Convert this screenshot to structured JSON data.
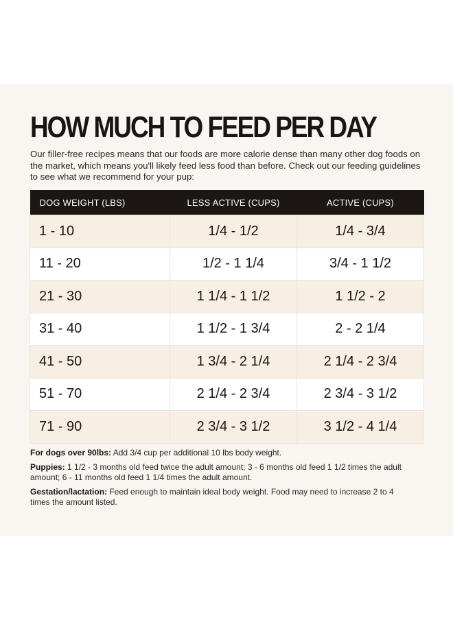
{
  "title": "HOW MUCH TO FEED PER DAY",
  "intro": "Our filler-free recipes means that our foods are more calorie dense than many other dog foods on the market, which means you'll likely feed less food than before. Check out our feeding guidelines to see what we recommend for your pup:",
  "table": {
    "headers": [
      "DOG WEIGHT (LBS)",
      "LESS ACTIVE (CUPS)",
      "ACTIVE (CUPS)"
    ],
    "rows": [
      [
        "1 - 10",
        "1/4 - 1/2",
        "1/4 - 3/4"
      ],
      [
        "11 - 20",
        "1/2 - 1 1/4",
        "3/4 - 1 1/2"
      ],
      [
        "21 - 30",
        "1 1/4 - 1 1/2",
        "1 1/2 - 2"
      ],
      [
        "31 - 40",
        "1 1/2 - 1 3/4",
        "2 - 2 1/4"
      ],
      [
        "41 - 50",
        "1 3/4 - 2 1/4",
        "2 1/4 - 2 3/4"
      ],
      [
        "51 - 70",
        "2 1/4 - 2 3/4",
        "2 3/4 - 3 1/2"
      ],
      [
        "71 - 90",
        "2 3/4 - 3 1/2",
        "3 1/2 - 4 1/4"
      ]
    ]
  },
  "notes": {
    "over90": {
      "label": "For dogs over 90lbs:",
      "text": " Add 3/4 cup per additional 10 lbs body weight."
    },
    "puppies": {
      "label": "Puppies:",
      "text": " 1 1/2 - 3 months old feed twice the adult amount; 3 - 6 months old feed 1 1/2 times the adult amount; 6 - 11 months old feed 1 1/4 times the adult amount."
    },
    "gestation": {
      "label": "Gestation/lactation:",
      "text": " Feed enough to maintain ideal body weight. Food may need to increase 2 to 4 times the amount listed."
    }
  },
  "colors": {
    "panel_background": "#f9f6f1",
    "header_background": "#1c1614",
    "row_tint": "#f7efe3",
    "text": "#1a1513"
  }
}
